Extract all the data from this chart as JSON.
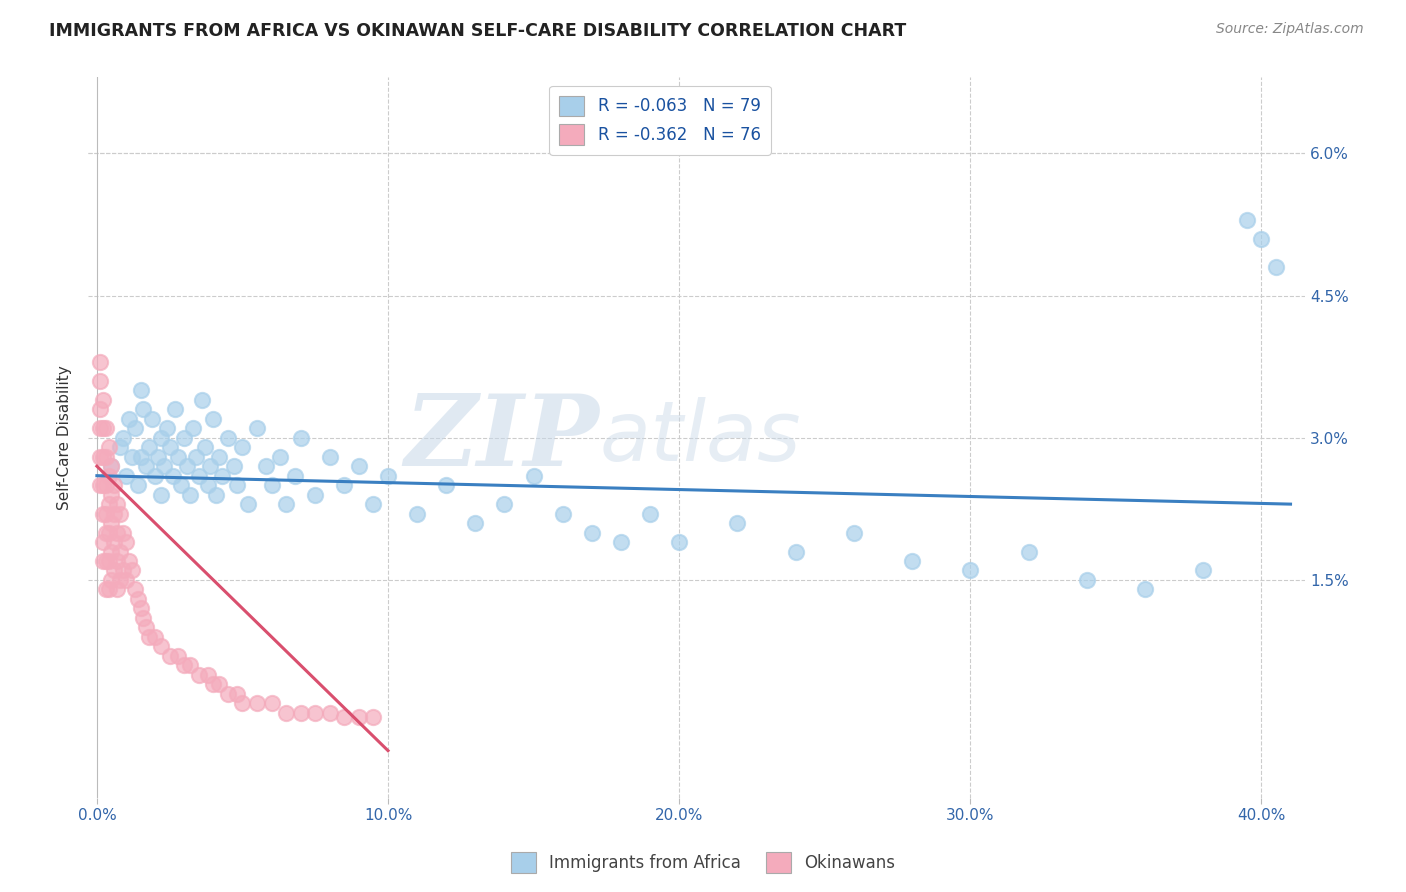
{
  "title": "IMMIGRANTS FROM AFRICA VS OKINAWAN SELF-CARE DISABILITY CORRELATION CHART",
  "source": "Source: ZipAtlas.com",
  "ylabel": "Self-Care Disability",
  "yticks": [
    "6.0%",
    "4.5%",
    "3.0%",
    "1.5%"
  ],
  "ytick_vals": [
    0.06,
    0.045,
    0.03,
    0.015
  ],
  "xlim": [
    -0.003,
    0.415
  ],
  "ylim": [
    -0.008,
    0.068
  ],
  "legend1_text": "R = -0.063   N = 79",
  "legend2_text": "R = -0.362   N = 76",
  "blue_color": "#A8CFEA",
  "pink_color": "#F4ABBC",
  "blue_line_color": "#3A7FC1",
  "pink_line_color": "#D94F6E",
  "background_color": "#FFFFFF",
  "watermark_zip": "ZIP",
  "watermark_atlas": "atlas",
  "blue_scatter_x": [
    0.005,
    0.008,
    0.009,
    0.01,
    0.011,
    0.012,
    0.013,
    0.014,
    0.015,
    0.015,
    0.016,
    0.017,
    0.018,
    0.019,
    0.02,
    0.021,
    0.022,
    0.022,
    0.023,
    0.024,
    0.025,
    0.026,
    0.027,
    0.028,
    0.029,
    0.03,
    0.031,
    0.032,
    0.033,
    0.034,
    0.035,
    0.036,
    0.037,
    0.038,
    0.039,
    0.04,
    0.041,
    0.042,
    0.043,
    0.045,
    0.047,
    0.048,
    0.05,
    0.052,
    0.055,
    0.058,
    0.06,
    0.063,
    0.065,
    0.068,
    0.07,
    0.075,
    0.08,
    0.085,
    0.09,
    0.095,
    0.1,
    0.11,
    0.12,
    0.13,
    0.14,
    0.15,
    0.16,
    0.17,
    0.18,
    0.19,
    0.2,
    0.22,
    0.24,
    0.26,
    0.28,
    0.3,
    0.32,
    0.34,
    0.36,
    0.38,
    0.395,
    0.4,
    0.405
  ],
  "blue_scatter_y": [
    0.027,
    0.029,
    0.03,
    0.026,
    0.032,
    0.028,
    0.031,
    0.025,
    0.035,
    0.028,
    0.033,
    0.027,
    0.029,
    0.032,
    0.026,
    0.028,
    0.03,
    0.024,
    0.027,
    0.031,
    0.029,
    0.026,
    0.033,
    0.028,
    0.025,
    0.03,
    0.027,
    0.024,
    0.031,
    0.028,
    0.026,
    0.034,
    0.029,
    0.025,
    0.027,
    0.032,
    0.024,
    0.028,
    0.026,
    0.03,
    0.027,
    0.025,
    0.029,
    0.023,
    0.031,
    0.027,
    0.025,
    0.028,
    0.023,
    0.026,
    0.03,
    0.024,
    0.028,
    0.025,
    0.027,
    0.023,
    0.026,
    0.022,
    0.025,
    0.021,
    0.023,
    0.026,
    0.022,
    0.02,
    0.019,
    0.022,
    0.019,
    0.021,
    0.018,
    0.02,
    0.017,
    0.016,
    0.018,
    0.015,
    0.014,
    0.016,
    0.053,
    0.051,
    0.048
  ],
  "pink_scatter_x": [
    0.001,
    0.001,
    0.001,
    0.001,
    0.001,
    0.001,
    0.002,
    0.002,
    0.002,
    0.002,
    0.002,
    0.002,
    0.002,
    0.003,
    0.003,
    0.003,
    0.003,
    0.003,
    0.003,
    0.003,
    0.004,
    0.004,
    0.004,
    0.004,
    0.004,
    0.004,
    0.005,
    0.005,
    0.005,
    0.005,
    0.005,
    0.006,
    0.006,
    0.006,
    0.006,
    0.007,
    0.007,
    0.007,
    0.007,
    0.008,
    0.008,
    0.008,
    0.009,
    0.009,
    0.01,
    0.01,
    0.011,
    0.012,
    0.013,
    0.014,
    0.015,
    0.016,
    0.017,
    0.018,
    0.02,
    0.022,
    0.025,
    0.028,
    0.03,
    0.032,
    0.035,
    0.038,
    0.04,
    0.042,
    0.045,
    0.048,
    0.05,
    0.055,
    0.06,
    0.065,
    0.07,
    0.075,
    0.08,
    0.085,
    0.09,
    0.095
  ],
  "pink_scatter_y": [
    0.038,
    0.036,
    0.033,
    0.031,
    0.028,
    0.025,
    0.034,
    0.031,
    0.028,
    0.025,
    0.022,
    0.019,
    0.017,
    0.031,
    0.028,
    0.025,
    0.022,
    0.02,
    0.017,
    0.014,
    0.029,
    0.026,
    0.023,
    0.02,
    0.017,
    0.014,
    0.027,
    0.024,
    0.021,
    0.018,
    0.015,
    0.025,
    0.022,
    0.019,
    0.016,
    0.023,
    0.02,
    0.017,
    0.014,
    0.022,
    0.018,
    0.015,
    0.02,
    0.016,
    0.019,
    0.015,
    0.017,
    0.016,
    0.014,
    0.013,
    0.012,
    0.011,
    0.01,
    0.009,
    0.009,
    0.008,
    0.007,
    0.007,
    0.006,
    0.006,
    0.005,
    0.005,
    0.004,
    0.004,
    0.003,
    0.003,
    0.002,
    0.002,
    0.002,
    0.001,
    0.001,
    0.001,
    0.001,
    0.0005,
    0.0005,
    0.0005
  ]
}
